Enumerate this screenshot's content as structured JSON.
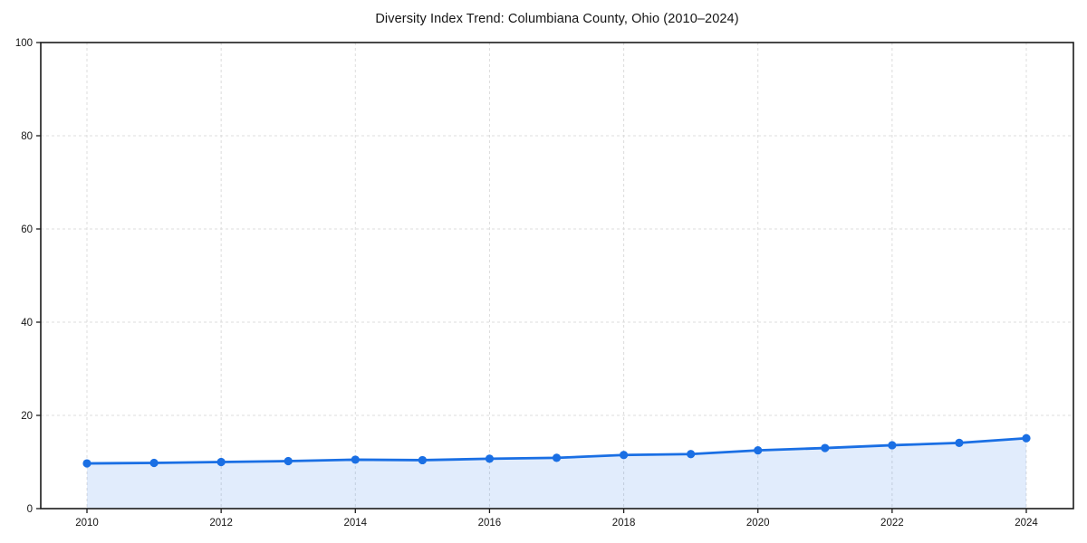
{
  "chart_data": {
    "type": "line",
    "title": "Diversity Index Trend: Columbiana County, Ohio (2010–2024)",
    "x": [
      2010,
      2011,
      2012,
      2013,
      2014,
      2015,
      2016,
      2017,
      2018,
      2019,
      2020,
      2021,
      2022,
      2023,
      2024
    ],
    "series": [
      {
        "name": "Diversity Index",
        "values": [
          9.7,
          9.8,
          10.0,
          10.2,
          10.5,
          10.4,
          10.7,
          10.9,
          11.5,
          11.7,
          12.5,
          13.0,
          13.6,
          14.1,
          15.1
        ]
      }
    ],
    "xlabel": "",
    "ylabel": "",
    "xlim": [
      2009.3,
      2024.7
    ],
    "ylim": [
      0,
      100
    ],
    "xticks": [
      2010,
      2012,
      2014,
      2016,
      2018,
      2020,
      2022,
      2024
    ],
    "yticks": [
      0,
      20,
      40,
      60,
      80,
      100
    ],
    "grid": true,
    "grid_style": "dashed",
    "legend_position": "none",
    "marker": "circle",
    "colors": {
      "line": "#1a6fe4",
      "marker": "#1a6fe4",
      "fill": "#1a6fe4",
      "fill_opacity": 0.13,
      "grid": "#dcdcdc",
      "axis": "#1a1a1a",
      "tick_text": "#151515"
    }
  }
}
